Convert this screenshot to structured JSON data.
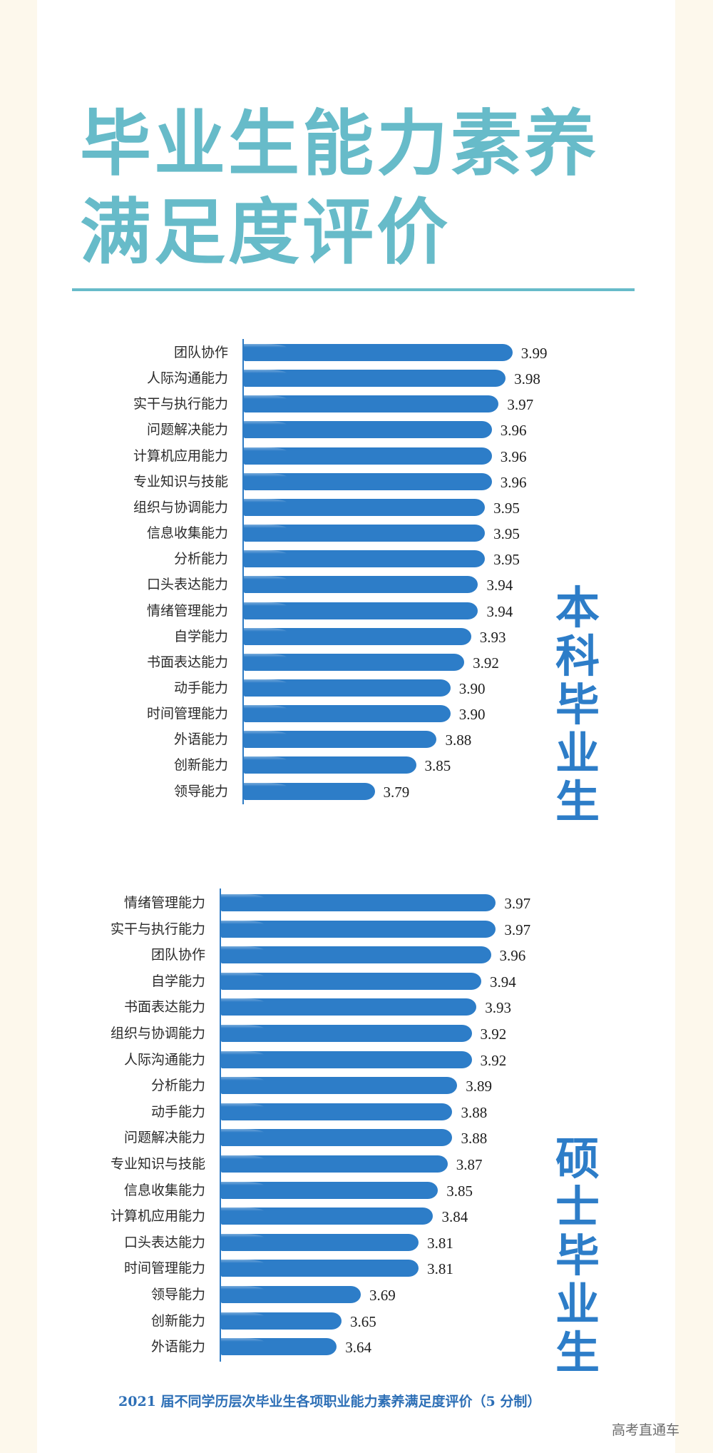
{
  "title": {
    "line1": "毕业生能力素养",
    "line2": "满足度评价",
    "color": "#67bbc9"
  },
  "caption": "2021 届不同学历层次毕业生各项职业能力素养满足度评价（5 分制）",
  "watermark": "高考直通车",
  "colors": {
    "bar": "#2d7dc8",
    "accent_title": "#67bbc9",
    "side_label": "#2d7dc8",
    "background": "#fdf8ec"
  },
  "chart_data": [
    {
      "type": "bar",
      "orientation": "horizontal",
      "title": "本科毕业生",
      "side_label": "本科毕业生",
      "categories": [
        "团队协作",
        "人际沟通能力",
        "实干与执行能力",
        "问题解决能力",
        "计算机应用能力",
        "专业知识与技能",
        "组织与协调能力",
        "信息收集能力",
        "分析能力",
        "口头表达能力",
        "情绪管理能力",
        "自学能力",
        "书面表达能力",
        "动手能力",
        "时间管理能力",
        "外语能力",
        "创新能力",
        "领导能力"
      ],
      "values": [
        3.99,
        3.98,
        3.97,
        3.96,
        3.96,
        3.96,
        3.95,
        3.95,
        3.95,
        3.94,
        3.94,
        3.93,
        3.92,
        3.9,
        3.9,
        3.88,
        3.85,
        3.79
      ],
      "value_labels": [
        "3.99",
        "3.98",
        "3.97",
        "3.96",
        "3.96",
        "3.96",
        "3.95",
        "3.95",
        "3.95",
        "3.94",
        "3.94",
        "3.93",
        "3.92",
        "3.90",
        "3.90",
        "3.88",
        "3.85",
        "3.79"
      ],
      "xlabel": "",
      "ylabel": "",
      "xlim": [
        3.6,
        4.0
      ],
      "grid": false,
      "legend": "none",
      "data_labels": true
    },
    {
      "type": "bar",
      "orientation": "horizontal",
      "title": "硕士毕业生",
      "side_label": "硕士毕业生",
      "categories": [
        "情绪管理能力",
        "实干与执行能力",
        "团队协作",
        "自学能力",
        "书面表达能力",
        "组织与协调能力",
        "人际沟通能力",
        "分析能力",
        "动手能力",
        "问题解决能力",
        "专业知识与技能",
        "信息收集能力",
        "计算机应用能力",
        "口头表达能力",
        "时间管理能力",
        "领导能力",
        "创新能力",
        "外语能力"
      ],
      "values": [
        3.97,
        3.97,
        3.96,
        3.94,
        3.93,
        3.92,
        3.92,
        3.89,
        3.88,
        3.88,
        3.87,
        3.85,
        3.84,
        3.81,
        3.81,
        3.69,
        3.65,
        3.64
      ],
      "value_labels": [
        "3.97",
        "3.97",
        "3.96",
        "3.94",
        "3.93",
        "3.92",
        "3.92",
        "3.89",
        "3.88",
        "3.88",
        "3.87",
        "3.85",
        "3.84",
        "3.81",
        "3.81",
        "3.69",
        "3.65",
        "3.64"
      ],
      "xlabel": "",
      "ylabel": "",
      "xlim": [
        3.4,
        4.0
      ],
      "grid": false,
      "legend": "none",
      "data_labels": true
    }
  ]
}
